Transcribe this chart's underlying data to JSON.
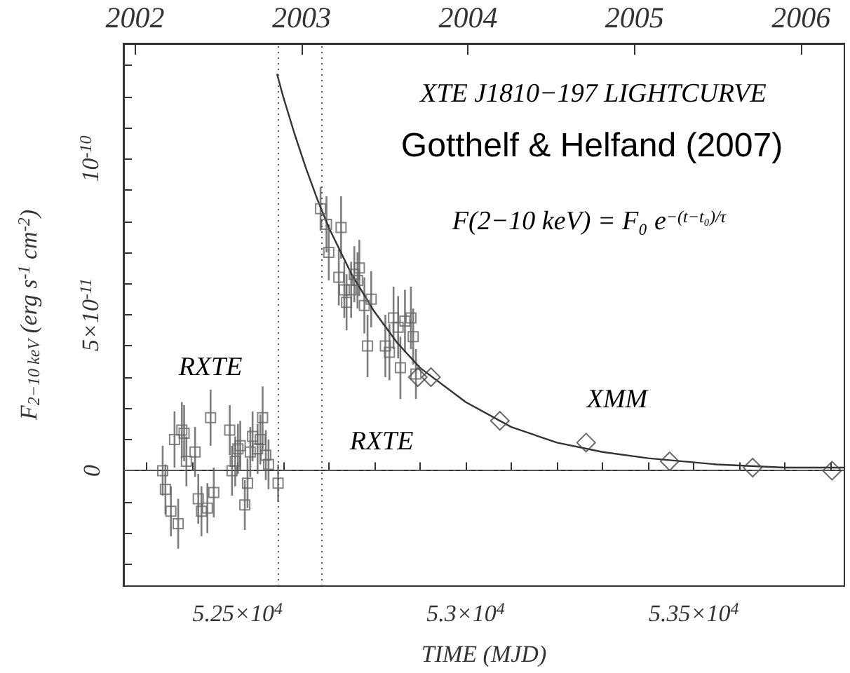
{
  "chart_data": {
    "type": "scatter",
    "xlabel": "TIME (MJD)",
    "ylabel": "F$_{2−10 keV}$ (erg s$^{-1}$ cm$^{-2}$)",
    "annotations": [
      "XTE J1810−197 LIGHTCURVE",
      "Gotthelf & Helfand (2007)",
      "F(2−10 keV) = F₀ e$^{−(t−t₀)/τ}$",
      "RXTE",
      "RXTE",
      "XMM"
    ],
    "xlim": [
      52250,
      53830
    ],
    "ylim": [
      -3.7e-11,
      1.37e-10
    ],
    "xticks": [
      {
        "value": 52300,
        "label": null
      },
      {
        "value": 52400,
        "label": null
      },
      {
        "value": 52500,
        "label": "5.25×10$^{4}$"
      },
      {
        "value": 52600,
        "label": null
      },
      {
        "value": 52700,
        "label": null
      },
      {
        "value": 52800,
        "label": null
      },
      {
        "value": 52900,
        "label": null
      },
      {
        "value": 53000,
        "label": "5.3×10$^{4}$"
      },
      {
        "value": 53100,
        "label": null
      },
      {
        "value": 53200,
        "label": null
      },
      {
        "value": 53300,
        "label": null
      },
      {
        "value": 53400,
        "label": null
      },
      {
        "value": 53500,
        "label": "5.35×10$^{4}$"
      },
      {
        "value": 53600,
        "label": null
      },
      {
        "value": 53700,
        "label": null
      },
      {
        "value": 53800,
        "label": null
      }
    ],
    "yticks": [
      {
        "value": -3e-11,
        "label": null
      },
      {
        "value": -2e-11,
        "label": null
      },
      {
        "value": -1e-11,
        "label": null
      },
      {
        "value": 0,
        "label": "0"
      },
      {
        "value": 1e-11,
        "label": null
      },
      {
        "value": 2e-11,
        "label": null
      },
      {
        "value": 3e-11,
        "label": null
      },
      {
        "value": 4e-11,
        "label": null
      },
      {
        "value": 5e-11,
        "label": "5×10$^{-11}$"
      },
      {
        "value": 6e-11,
        "label": null
      },
      {
        "value": 7e-11,
        "label": null
      },
      {
        "value": 8e-11,
        "label": null
      },
      {
        "value": 9e-11,
        "label": null
      },
      {
        "value": 1e-10,
        "label": "10$^{-10}$"
      },
      {
        "value": 1.1e-10,
        "label": null
      },
      {
        "value": 1.2e-10,
        "label": null
      },
      {
        "value": 1.3e-10,
        "label": null
      }
    ],
    "x2lim": [
      2001.93,
      2006.26
    ],
    "x2ticks": [
      2002,
      2003,
      2004,
      2005,
      2006
    ],
    "ref_lines": [
      {
        "axis": "x",
        "value": 52589,
        "line_style": "dotted",
        "color": "#555555"
      },
      {
        "axis": "x",
        "value": 52685,
        "line_style": "dotted",
        "color": "#555555"
      },
      {
        "axis": "y",
        "value": 0,
        "line_style": "dashed",
        "color": "#555555"
      }
    ],
    "series": [
      {
        "marker": "square",
        "color": "#666666",
        "x": [
          52336,
          52342,
          52354,
          52362,
          52370,
          52378,
          52383,
          52388,
          52407,
          52414,
          52421,
          52434,
          52441,
          52448,
          52483,
          52488,
          52495,
          52501,
          52506,
          52516,
          52522,
          52528,
          52533,
          52544,
          52550,
          52555,
          52562,
          52568,
          52589,
          52682,
          52695,
          52700,
          52722,
          52727,
          52734,
          52739,
          52749,
          52756,
          52763,
          52767,
          52778,
          52785,
          52793,
          52824,
          52833,
          52842,
          52852,
          52857,
          52867,
          52880,
          52885,
          52891
        ],
        "values": [
          0,
          -6e-12,
          -1.3e-11,
          1e-11,
          -1.7e-11,
          1.3e-11,
          1.2e-11,
          3e-12,
          6e-12,
          -9e-12,
          -1.3e-11,
          -1.2e-11,
          1.7e-11,
          -7e-12,
          1.3e-11,
          0,
          3e-12,
          7e-12,
          8e-12,
          -1.1e-11,
          -4e-12,
          6e-12,
          1.1e-11,
          7e-12,
          1e-11,
          1.7e-11,
          5e-12,
          2e-12,
          -4e-12,
          8.4e-11,
          7.9e-11,
          7e-11,
          6.2e-11,
          7.8e-11,
          5.8e-11,
          5.4e-11,
          5.8e-11,
          6.3e-11,
          6.1e-11,
          6.5e-11,
          5.3e-11,
          4e-11,
          5.5e-11,
          4e-11,
          3.8e-11,
          4.9e-11,
          4.6e-11,
          3.3e-11,
          4.8e-11,
          4.9e-11,
          4.3e-11,
          3.1e-11
        ],
        "errors": [
          8e-12,
          8e-12,
          8e-12,
          9e-12,
          8e-12,
          9e-12,
          9e-12,
          8e-12,
          8e-12,
          8e-12,
          8e-12,
          8e-12,
          9e-12,
          8e-12,
          8e-12,
          8e-12,
          8e-12,
          8e-12,
          8e-12,
          8e-12,
          8e-12,
          8e-12,
          8e-12,
          8e-12,
          8e-12,
          1e-11,
          8e-12,
          8e-12,
          6e-12,
          7e-12,
          9e-12,
          9e-12,
          9e-12,
          1e-11,
          9e-12,
          9e-12,
          9e-12,
          9e-12,
          9e-12,
          9e-12,
          9e-12,
          1e-11,
          9e-12,
          1e-11,
          9e-12,
          1e-11,
          1e-11,
          1e-11,
          1e-11,
          1e-11,
          9e-12,
          8e-12
        ]
      },
      {
        "marker": "diamond",
        "color": "#444444",
        "x": [
          52895,
          52924,
          53075,
          53264,
          53447,
          53629,
          53803
        ],
        "values": [
          3e-11,
          3e-11,
          1.6e-11,
          9e-12,
          3e-12,
          1e-12,
          0
        ]
      },
      {
        "type": "line",
        "marker": "none",
        "color": "#333333",
        "line_style": "solid",
        "x": [
          52587,
          52600,
          52625,
          52650,
          52675,
          52700,
          52750,
          52800,
          52850,
          52900,
          53000,
          53100,
          53200,
          53300,
          53400,
          53550,
          53700,
          53830
        ],
        "values": [
          1.27e-10,
          1.2e-10,
          1.08e-10,
          9.7e-11,
          8.7e-11,
          7.8e-11,
          6.3e-11,
          5.1e-11,
          4.1e-11,
          3.3e-11,
          2.2e-11,
          1.4e-11,
          9e-12,
          6e-12,
          4e-12,
          2e-12,
          1e-12,
          1e-12
        ]
      }
    ]
  }
}
